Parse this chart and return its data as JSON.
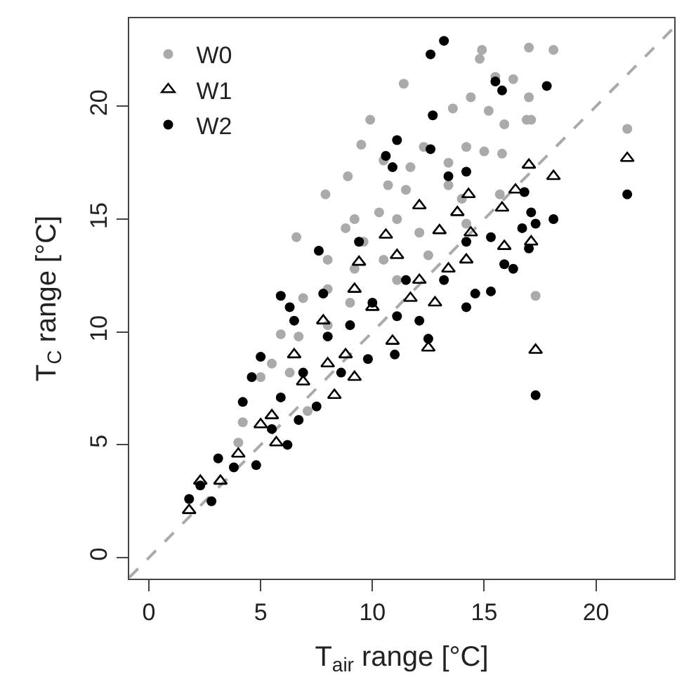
{
  "chart_data": {
    "type": "scatter",
    "xlabel": "T$_{air}$ range [°C]",
    "ylabel": "T$_{C}$ range [°C]",
    "xlim": [
      -0.88,
      23.5
    ],
    "ylim": [
      -0.93,
      23.9
    ],
    "xticks": [
      0,
      5,
      10,
      15,
      20
    ],
    "yticks": [
      0,
      5,
      10,
      15,
      20
    ],
    "grid": false,
    "legend": "top left",
    "series": [
      {
        "name": "W0",
        "color": "#aaaaaa",
        "marker": "circle",
        "x": [
          17.0,
          18.1,
          14.9,
          14.8,
          11.4,
          16.3,
          15.5,
          17.0,
          17.1,
          16.9,
          21.4,
          13.6,
          14.4,
          15.2,
          15.9,
          9.9,
          9.5,
          12.3,
          14.2,
          15.0,
          15.8,
          8.9,
          10.5,
          11.7,
          13.4,
          7.9,
          10.7,
          11.5,
          13.4,
          15.7,
          9.2,
          10.3,
          11.1,
          8.8,
          6.6,
          9.6,
          12.1,
          14.2,
          8.0,
          9.2,
          10.5,
          6.9,
          8.0,
          17.3,
          5.9,
          6.7,
          8.0,
          5.5,
          5.0,
          4.2,
          4.0,
          6.3,
          9.0,
          11.1,
          12.5,
          7.1,
          14.0
        ],
        "values": [
          22.6,
          22.5,
          22.5,
          22.1,
          21.0,
          21.2,
          21.3,
          20.4,
          19.4,
          19.4,
          19.0,
          19.9,
          20.4,
          19.8,
          19.2,
          19.4,
          18.3,
          18.2,
          18.2,
          18.0,
          17.9,
          16.9,
          17.6,
          17.3,
          17.5,
          16.1,
          16.5,
          16.3,
          16.5,
          16.1,
          15.0,
          15.3,
          15.0,
          14.6,
          14.2,
          14.0,
          14.4,
          14.8,
          13.2,
          12.8,
          13.2,
          11.5,
          11.9,
          11.6,
          9.9,
          9.8,
          10.3,
          8.6,
          8.0,
          6.0,
          5.1,
          8.2,
          11.3,
          12.3,
          13.4,
          6.5,
          15.9
        ]
      },
      {
        "name": "W1",
        "color": "#000000",
        "marker": "triangle-open",
        "x": [
          17.0,
          18.1,
          21.4,
          16.4,
          14.3,
          12.1,
          13.0,
          10.6,
          9.4,
          11.1,
          15.8,
          17.1,
          13.8,
          9.2,
          7.8,
          6.5,
          9.2,
          8.3,
          12.5,
          17.3,
          10.9,
          5.0,
          5.7,
          4.0,
          3.2,
          2.3,
          1.8,
          10.0,
          11.7,
          12.8,
          14.2,
          15.9,
          6.9,
          8.8,
          8.0,
          5.5,
          13.4,
          12.1,
          14.4
        ],
        "values": [
          17.4,
          16.9,
          17.7,
          16.3,
          16.1,
          15.6,
          14.5,
          14.3,
          13.1,
          13.4,
          15.5,
          14.0,
          15.3,
          11.9,
          10.5,
          9.0,
          8.0,
          7.2,
          9.3,
          9.2,
          9.6,
          5.9,
          5.1,
          4.6,
          3.4,
          3.4,
          2.1,
          11.1,
          11.5,
          11.3,
          13.2,
          13.8,
          7.8,
          9.0,
          8.6,
          6.3,
          12.8,
          12.3,
          14.4
        ]
      },
      {
        "name": "W2",
        "color": "#000000",
        "marker": "circle",
        "x": [
          13.2,
          12.6,
          17.8,
          15.5,
          15.8,
          12.7,
          11.1,
          10.6,
          10.9,
          12.6,
          13.4,
          14.2,
          21.4,
          18.1,
          16.8,
          17.1,
          17.0,
          17.3,
          9.4,
          7.6,
          5.9,
          6.3,
          7.8,
          6.5,
          5.0,
          4.6,
          4.2,
          3.1,
          1.8,
          2.8,
          2.3,
          4.8,
          6.2,
          12.5,
          14.2,
          15.3,
          14.6,
          16.3,
          11.0,
          9.8,
          8.0,
          9.0,
          10.0,
          11.5,
          13.2,
          14.2,
          15.3,
          17.3,
          6.9,
          5.9,
          7.5,
          6.7,
          5.5,
          3.8,
          8.6,
          11.1,
          12.1,
          15.9,
          16.7
        ],
        "values": [
          22.9,
          22.3,
          20.9,
          21.1,
          20.7,
          19.6,
          18.5,
          17.8,
          17.3,
          18.1,
          16.9,
          17.1,
          16.1,
          15.0,
          16.2,
          15.3,
          13.7,
          7.2,
          14.0,
          13.6,
          11.6,
          11.1,
          11.7,
          10.5,
          8.9,
          8.0,
          6.9,
          4.4,
          2.6,
          2.5,
          3.2,
          4.1,
          5.0,
          9.7,
          11.1,
          11.8,
          11.7,
          12.8,
          9.0,
          8.8,
          9.8,
          10.3,
          11.3,
          12.3,
          12.3,
          14.0,
          14.2,
          14.8,
          8.2,
          7.1,
          6.7,
          6.1,
          5.7,
          4.0,
          8.2,
          10.7,
          10.5,
          13.0,
          14.6
        ]
      },
      {
        "type": "line",
        "color": "#aaaaaa",
        "line_style": "dashed",
        "x": [
          -0.88,
          23.5
        ],
        "values": [
          -0.88,
          23.5
        ]
      }
    ]
  }
}
